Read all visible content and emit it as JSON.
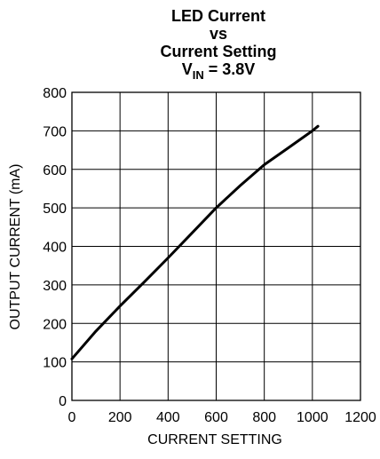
{
  "chart_data": {
    "type": "line",
    "title_lines": [
      "LED Current",
      "vs",
      "Current Setting"
    ],
    "subtitle": {
      "prefix": "V",
      "subscript": "IN",
      "suffix": " = 3.8V"
    },
    "xlabel": "CURRENT SETTING",
    "ylabel": "OUTPUT CURRENT (mA)",
    "xlim": [
      0,
      1200
    ],
    "ylim": [
      0,
      800
    ],
    "xticks": [
      0,
      200,
      400,
      600,
      800,
      1000,
      1200
    ],
    "yticks": [
      0,
      100,
      200,
      300,
      400,
      500,
      600,
      700,
      800
    ],
    "grid": true,
    "series": [
      {
        "x": [
          0,
          100,
          200,
          300,
          400,
          500,
          600,
          700,
          800,
          900,
          1000,
          1023
        ],
        "y": [
          108,
          180,
          245,
          307,
          370,
          435,
          500,
          558,
          612,
          656,
          700,
          712
        ]
      }
    ],
    "colors": {
      "line": "#000000",
      "grid": "#000000",
      "background": "#ffffff"
    }
  }
}
